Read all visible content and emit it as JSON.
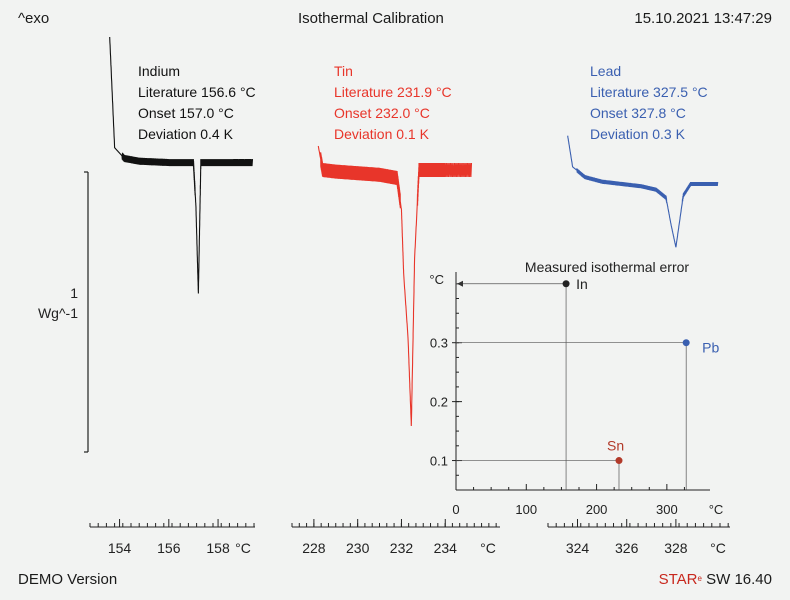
{
  "header": {
    "left": "^exo",
    "title": "Isothermal Calibration",
    "datetime": "15.10.2021 13:47:29"
  },
  "footer": {
    "left": "DEMO Version",
    "brand_red": "STAR",
    "brand_sup": "e",
    "brand_rest": " SW 16.40"
  },
  "y_scale": {
    "value": "1",
    "unit": "Wg^-1"
  },
  "colors": {
    "indium": "#111111",
    "tin": "#e8352a",
    "lead": "#3a5fb0",
    "axis": "#222222"
  },
  "chart_data": [
    {
      "type": "line",
      "name": "DSC curve – Indium",
      "label_lines": [
        "Indium",
        "Literature 156.6 °C",
        "Onset 157.0 °C",
        "Deviation 0.4 K"
      ],
      "x_unit": "°C",
      "x_ticks": [
        "154",
        "156",
        "158"
      ],
      "xlim": [
        152.8,
        159.5
      ],
      "x": [
        153.6,
        153.8,
        154.2,
        154.8,
        155.4,
        156.0,
        156.6,
        157.0,
        157.1,
        157.2,
        157.3,
        157.5,
        158.0,
        158.6,
        159.4
      ],
      "y": [
        1.0,
        0.18,
        0.1,
        0.08,
        0.075,
        0.07,
        0.07,
        0.07,
        -0.25,
        -0.9,
        0.07,
        0.07,
        0.07,
        0.07,
        0.07
      ]
    },
    {
      "type": "line",
      "name": "DSC curve – Tin",
      "label_lines": [
        "Tin",
        "Literature 231.9 °C",
        "Onset 232.0 °C",
        "Deviation 0.1 K"
      ],
      "x_unit": "°C",
      "x_ticks": [
        "228",
        "230",
        "232",
        "234"
      ],
      "xlim": [
        227.0,
        236.5
      ],
      "x": [
        228.2,
        228.4,
        229.0,
        230.0,
        231.0,
        231.8,
        232.0,
        232.1,
        232.3,
        232.45,
        232.6,
        232.8,
        233.0,
        234.0,
        235.2
      ],
      "y": [
        0.2,
        0.05,
        0.04,
        0.03,
        0.02,
        0.0,
        -0.2,
        -0.6,
        -1.0,
        -1.55,
        -0.5,
        0.05,
        0.05,
        0.05,
        0.05
      ]
    },
    {
      "type": "line",
      "name": "DSC curve – Lead",
      "label_lines": [
        "Lead",
        "Literature 327.5 °C",
        "Onset 327.8 °C",
        "Deviation 0.3 K"
      ],
      "x_unit": "°C",
      "x_ticks": [
        "324",
        "326",
        "328"
      ],
      "xlim": [
        322.8,
        330.2
      ],
      "x": [
        323.6,
        323.8,
        324.3,
        325.0,
        325.8,
        326.6,
        327.2,
        327.6,
        327.8,
        328.0,
        328.3,
        328.6,
        329.1,
        329.7
      ],
      "y": [
        0.42,
        0.15,
        0.06,
        0.02,
        0.0,
        -0.02,
        -0.05,
        -0.12,
        -0.35,
        -0.55,
        -0.1,
        0.0,
        0.0,
        0.0
      ]
    },
    {
      "type": "scatter",
      "title": "Measured isothermal error",
      "x_unit": "°C",
      "y_unit": "°C",
      "xlim": [
        0,
        350
      ],
      "ylim": [
        0.05,
        0.42
      ],
      "x_ticks": [
        0,
        100,
        200,
        300
      ],
      "y_ticks": [
        0.1,
        0.2,
        0.3
      ],
      "grid": false,
      "points": [
        {
          "label": "In",
          "x": 156.6,
          "y": 0.4,
          "color": "#222222"
        },
        {
          "label": "Pb",
          "x": 327.5,
          "y": 0.3,
          "color": "#3a5fb0"
        },
        {
          "label": "Sn",
          "x": 231.9,
          "y": 0.1,
          "color": "#b23a2a"
        }
      ]
    }
  ]
}
